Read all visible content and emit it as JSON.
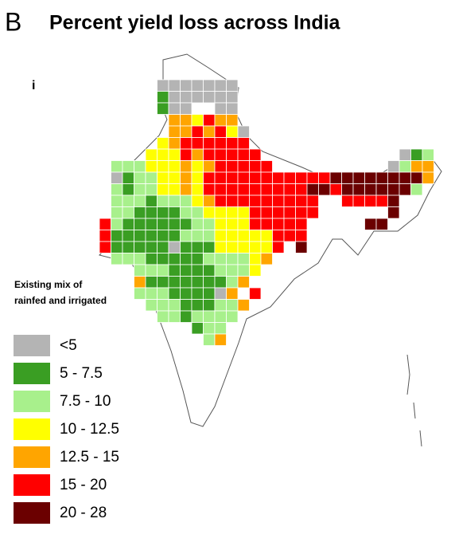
{
  "panel_letter": "B",
  "title": "Percent yield loss across India",
  "subpanel": "i",
  "legend": {
    "title_lines": [
      "Existing mix of",
      "rainfed and irrigated"
    ],
    "items": [
      {
        "label": "<5",
        "color": "#b4b4b4"
      },
      {
        "label": "5 - 7.5",
        "color": "#3a9e23"
      },
      {
        "label": "7.5 - 10",
        "color": "#a8f08c"
      },
      {
        "label": "10 - 12.5",
        "color": "#ffff00"
      },
      {
        "label": "12.5 - 15",
        "color": "#ffa500"
      },
      {
        "label": "15 - 20",
        "color": "#ff0000"
      },
      {
        "label": "20 - 28",
        "color": "#6b0000"
      }
    ]
  },
  "map": {
    "cells": [
      ".....0000000",
      ".....1000000",
      ".....100..00",
      "......443544",
      "......4454530",
      ".....34555555",
      "....3335455555............012",
      ".22233343455555..........0244",
      ".0122334355555555555666666664",
      ".212233435555555556656666662",
      ".222122234555555555..55556",
      ".221111223333555555......6",
      "521111112233355555.....66",
      "511111122233333555",
      "5111110111333335.6",
      ".22211111222234",
      "...22211112223",
      "...4111111124",
      "...222111104.5",
      "....222111224",
      ".....2212222",
      "........122",
      ".........24"
    ]
  }
}
